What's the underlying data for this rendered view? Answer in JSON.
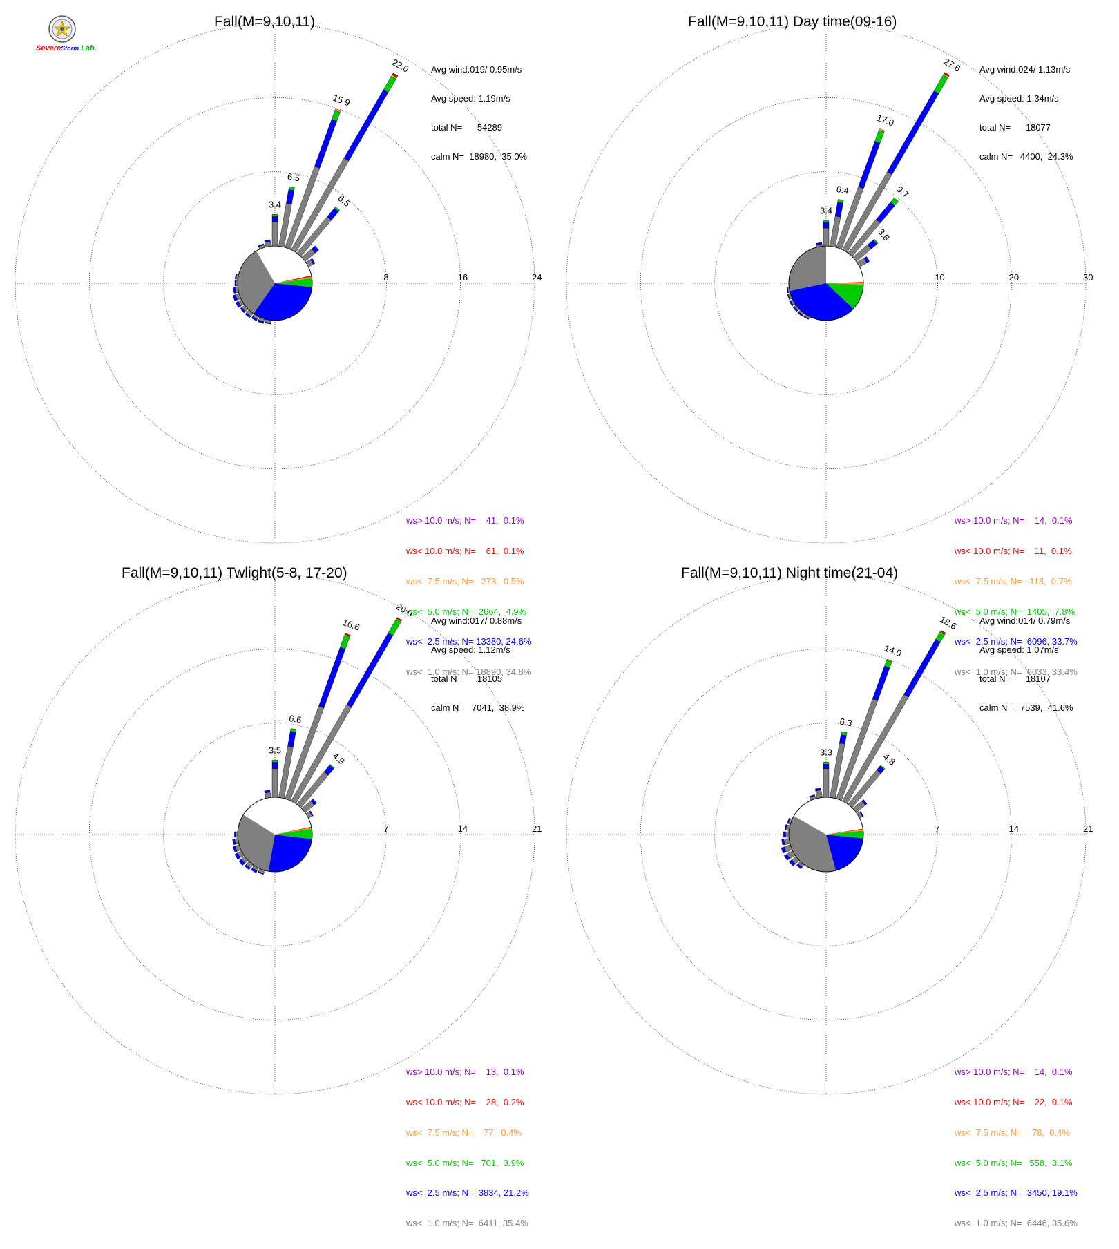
{
  "logo": {
    "text_severe": "Severe",
    "text_storm": "Storm",
    "text_lab": "Lab."
  },
  "colors": {
    "calm": "#808080",
    "ws_lt_1": "#808080",
    "ws_lt_2_5": "#0000ff",
    "ws_lt_5": "#00cc00",
    "ws_lt_7_5": "#ff9933",
    "ws_lt_10": "#ff0000",
    "ws_gt_10": "#9900cc"
  },
  "chart_data": [
    {
      "type": "windrose",
      "title": "Fall(M=9,10,11)",
      "stats": {
        "avg_wind": "Avg wind:019/ 0.95m/s",
        "avg_speed": "Avg speed: 1.19m/s",
        "total": "total N=      54289",
        "calm": "calm N=  18980,  35.0%"
      },
      "ring_labels": [
        "8",
        "16",
        "24"
      ],
      "rmax": 24,
      "calm_pie": [
        {
          "category": "ws<1.0",
          "from_deg": 215,
          "to_deg": 330
        },
        {
          "category": "ws<2.5",
          "from_deg": 96,
          "to_deg": 215
        },
        {
          "category": "ws<5.0",
          "from_deg": 82,
          "to_deg": 96
        },
        {
          "category": "ws<7.5",
          "from_deg": 80,
          "to_deg": 82
        },
        {
          "category": "ws<10.0",
          "from_deg": 78,
          "to_deg": 80
        }
      ],
      "bars": [
        {
          "dir": 0,
          "total": 3.4,
          "label": "3.4",
          "segments": [
            2.6,
            0.6,
            0.2
          ]
        },
        {
          "dir": 10,
          "total": 6.5,
          "label": "6.5",
          "segments": [
            4.7,
            1.5,
            0.3
          ]
        },
        {
          "dir": 20,
          "total": 15.9,
          "label": "15.9",
          "segments": [
            9.3,
            5.4,
            1.0,
            0.2
          ]
        },
        {
          "dir": 30,
          "total": 22.0,
          "label": "22.0",
          "segments": [
            11.4,
            8.5,
            1.7,
            0.2,
            0.2
          ]
        },
        {
          "dir": 40,
          "total": 6.5,
          "label": "6.5",
          "segments": [
            5.1,
            1.2,
            0.2
          ]
        },
        {
          "dir": 50,
          "total": 1.9,
          "label": "",
          "segments": [
            1.4,
            0.5
          ]
        },
        {
          "dir": 60,
          "total": 0.8,
          "label": "",
          "segments": [
            0.6,
            0.2
          ]
        },
        {
          "dir": 350,
          "total": 0.7,
          "label": "",
          "segments": [
            0.5,
            0.2
          ]
        },
        {
          "dir": 340,
          "total": 0.4,
          "label": "",
          "segments": [
            0.3,
            0.1
          ]
        },
        {
          "dir": 190,
          "total": 0.4,
          "label": "",
          "segments": [
            0.3,
            0.1
          ]
        },
        {
          "dir": 200,
          "total": 0.5,
          "label": "",
          "segments": [
            0.3,
            0.2
          ]
        },
        {
          "dir": 210,
          "total": 0.5,
          "label": "",
          "segments": [
            0.3,
            0.2
          ]
        },
        {
          "dir": 220,
          "total": 0.6,
          "label": "",
          "segments": [
            0.4,
            0.2
          ]
        },
        {
          "dir": 230,
          "total": 0.6,
          "label": "",
          "segments": [
            0.4,
            0.2
          ]
        },
        {
          "dir": 240,
          "total": 0.7,
          "label": "",
          "segments": [
            0.4,
            0.3
          ]
        },
        {
          "dir": 250,
          "total": 0.7,
          "label": "",
          "segments": [
            0.4,
            0.3
          ]
        },
        {
          "dir": 260,
          "total": 0.5,
          "label": "",
          "segments": [
            0.3,
            0.2
          ]
        },
        {
          "dir": 270,
          "total": 0.3,
          "label": "",
          "segments": [
            0.2,
            0.1
          ]
        },
        {
          "dir": 280,
          "total": 0.3,
          "label": "",
          "segments": [
            0.2,
            0.1
          ]
        }
      ],
      "legend": [
        {
          "text": "ws> 10.0 m/s; N=    41,  0.1%",
          "color": "#9900cc"
        },
        {
          "text": "ws< 10.0 m/s; N=    61,  0.1%",
          "color": "#ff0000"
        },
        {
          "text": "ws<  7.5 m/s; N=   273,  0.5%",
          "color": "#ff9933"
        },
        {
          "text": "ws<  5.0 m/s; N=  2664,  4.9%",
          "color": "#00cc00"
        },
        {
          "text": "ws<  2.5 m/s; N= 13380, 24.6%",
          "color": "#0000ff"
        },
        {
          "text": "ws<  1.0 m/s; N= 18890, 34.8%",
          "color": "#808080"
        }
      ]
    },
    {
      "type": "windrose",
      "title": "Fall(M=9,10,11) Day time(09-16)",
      "stats": {
        "avg_wind": "Avg wind:024/ 1.13m/s",
        "avg_speed": "Avg speed: 1.34m/s",
        "total": "total N=      18077",
        "calm": "calm N=   4400,  24.3%"
      },
      "ring_labels": [
        "10",
        "20",
        "30"
      ],
      "rmax": 30,
      "calm_pie": [
        {
          "category": "ws<1.0",
          "from_deg": 258,
          "to_deg": 360
        },
        {
          "category": "ws<2.5",
          "from_deg": 133,
          "to_deg": 258
        },
        {
          "category": "ws<5.0",
          "from_deg": 92,
          "to_deg": 133
        },
        {
          "category": "ws<7.5",
          "from_deg": 89,
          "to_deg": 92
        },
        {
          "category": "ws<10.0",
          "from_deg": 88,
          "to_deg": 89
        }
      ],
      "bars": [
        {
          "dir": 0,
          "total": 3.4,
          "label": "3.4",
          "segments": [
            2.4,
            0.8,
            0.2
          ]
        },
        {
          "dir": 10,
          "total": 6.4,
          "label": "6.4",
          "segments": [
            4.1,
            1.9,
            0.4
          ]
        },
        {
          "dir": 20,
          "total": 17.0,
          "label": "17.0",
          "segments": [
            8.7,
            6.5,
            1.6,
            0.2
          ]
        },
        {
          "dir": 30,
          "total": 27.6,
          "label": "27.6",
          "segments": [
            12.1,
            12.6,
            2.5,
            0.2,
            0.2
          ]
        },
        {
          "dir": 40,
          "total": 9.7,
          "label": "9.7",
          "segments": [
            5.9,
            3.0,
            0.8
          ]
        },
        {
          "dir": 50,
          "total": 3.8,
          "label": "3.8",
          "segments": [
            2.6,
            1.0,
            0.2
          ]
        },
        {
          "dir": 60,
          "total": 1.5,
          "label": "",
          "segments": [
            1.1,
            0.4
          ]
        },
        {
          "dir": 350,
          "total": 0.5,
          "label": "",
          "segments": [
            0.3,
            0.2
          ]
        },
        {
          "dir": 210,
          "total": 0.4,
          "label": "",
          "segments": [
            0.3,
            0.1
          ]
        },
        {
          "dir": 220,
          "total": 0.5,
          "label": "",
          "segments": [
            0.3,
            0.2
          ]
        },
        {
          "dir": 230,
          "total": 0.5,
          "label": "",
          "segments": [
            0.3,
            0.2
          ]
        },
        {
          "dir": 240,
          "total": 0.5,
          "label": "",
          "segments": [
            0.3,
            0.2
          ]
        },
        {
          "dir": 250,
          "total": 0.4,
          "label": "",
          "segments": [
            0.3,
            0.1
          ]
        },
        {
          "dir": 260,
          "total": 0.3,
          "label": "",
          "segments": [
            0.2,
            0.1
          ]
        }
      ],
      "legend": [
        {
          "text": "ws> 10.0 m/s; N=    14,  0.1%",
          "color": "#9900cc"
        },
        {
          "text": "ws< 10.0 m/s; N=    11,  0.1%",
          "color": "#ff0000"
        },
        {
          "text": "ws<  7.5 m/s; N=   118,  0.7%",
          "color": "#ff9933"
        },
        {
          "text": "ws<  5.0 m/s; N=  1405,  7.8%",
          "color": "#00cc00"
        },
        {
          "text": "ws<  2.5 m/s; N=  6096, 33.7%",
          "color": "#0000ff"
        },
        {
          "text": "ws<  1.0 m/s; N=  6033, 33.4%",
          "color": "#808080"
        }
      ]
    },
    {
      "type": "windrose",
      "title": "Fall(M=9,10,11) Twlight(5-8, 17-20)",
      "stats": {
        "avg_wind": "Avg wind:017/ 0.88m/s",
        "avg_speed": "Avg speed: 1.12m/s",
        "total": "total N=      18105",
        "calm": "calm N=   7041,  38.9%"
      },
      "ring_labels": [
        "7",
        "14",
        "21"
      ],
      "rmax": 21,
      "calm_pie": [
        {
          "category": "ws<1.0",
          "from_deg": 190,
          "to_deg": 302
        },
        {
          "category": "ws<2.5",
          "from_deg": 97,
          "to_deg": 190
        },
        {
          "category": "ws<5.0",
          "from_deg": 81,
          "to_deg": 97
        },
        {
          "category": "ws<7.5",
          "from_deg": 79,
          "to_deg": 81
        },
        {
          "category": "ws<10.0",
          "from_deg": 78,
          "to_deg": 79
        }
      ],
      "bars": [
        {
          "dir": 0,
          "total": 3.5,
          "label": "3.5",
          "segments": [
            2.7,
            0.6,
            0.2
          ]
        },
        {
          "dir": 10,
          "total": 6.6,
          "label": "6.6",
          "segments": [
            4.9,
            1.4,
            0.3
          ]
        },
        {
          "dir": 20,
          "total": 16.6,
          "label": "16.6",
          "segments": [
            9.3,
            5.9,
            1.2,
            0.1,
            0.1
          ]
        },
        {
          "dir": 30,
          "total": 20.0,
          "label": "20.0",
          "segments": [
            10.5,
            7.8,
            1.5,
            0.1,
            0.1
          ]
        },
        {
          "dir": 40,
          "total": 4.9,
          "label": "4.9",
          "segments": [
            4.0,
            0.8,
            0.1
          ]
        },
        {
          "dir": 50,
          "total": 1.4,
          "label": "",
          "segments": [
            1.1,
            0.3
          ]
        },
        {
          "dir": 60,
          "total": 0.5,
          "label": "",
          "segments": [
            0.4,
            0.1
          ]
        },
        {
          "dir": 350,
          "total": 0.7,
          "label": "",
          "segments": [
            0.5,
            0.2
          ]
        },
        {
          "dir": 200,
          "total": 0.4,
          "label": "",
          "segments": [
            0.3,
            0.1
          ]
        },
        {
          "dir": 210,
          "total": 0.5,
          "label": "",
          "segments": [
            0.3,
            0.2
          ]
        },
        {
          "dir": 220,
          "total": 0.6,
          "label": "",
          "segments": [
            0.4,
            0.2
          ]
        },
        {
          "dir": 230,
          "total": 0.7,
          "label": "",
          "segments": [
            0.4,
            0.3
          ]
        },
        {
          "dir": 240,
          "total": 0.7,
          "label": "",
          "segments": [
            0.4,
            0.3
          ]
        },
        {
          "dir": 250,
          "total": 0.6,
          "label": "",
          "segments": [
            0.4,
            0.2
          ]
        },
        {
          "dir": 260,
          "total": 0.5,
          "label": "",
          "segments": [
            0.3,
            0.2
          ]
        },
        {
          "dir": 270,
          "total": 0.3,
          "label": "",
          "segments": [
            0.2,
            0.1
          ]
        }
      ],
      "legend": [
        {
          "text": "ws> 10.0 m/s; N=    13,  0.1%",
          "color": "#9900cc"
        },
        {
          "text": "ws< 10.0 m/s; N=    28,  0.2%",
          "color": "#ff0000"
        },
        {
          "text": "ws<  7.5 m/s; N=    77,  0.4%",
          "color": "#ff9933"
        },
        {
          "text": "ws<  5.0 m/s; N=   701,  3.9%",
          "color": "#00cc00"
        },
        {
          "text": "ws<  2.5 m/s; N=  3834, 21.2%",
          "color": "#0000ff"
        },
        {
          "text": "ws<  1.0 m/s; N=  6411, 35.4%",
          "color": "#808080"
        }
      ]
    },
    {
      "type": "windrose",
      "title": "Fall(M=9,10,11) Night time(21-04)",
      "stats": {
        "avg_wind": "Avg wind:014/ 0.79m/s",
        "avg_speed": "Avg speed: 1.07m/s",
        "total": "total N=      18107",
        "calm": "calm N=   7539,  41.6%"
      },
      "ring_labels": [
        "7",
        "14",
        "21"
      ],
      "rmax": 21,
      "calm_pie": [
        {
          "category": "ws<1.0",
          "from_deg": 165,
          "to_deg": 300
        },
        {
          "category": "ws<2.5",
          "from_deg": 96,
          "to_deg": 165
        },
        {
          "category": "ws<5.0",
          "from_deg": 84,
          "to_deg": 96
        },
        {
          "category": "ws<7.5",
          "from_deg": 82,
          "to_deg": 84
        },
        {
          "category": "ws<10.0",
          "from_deg": 81,
          "to_deg": 82
        }
      ],
      "bars": [
        {
          "dir": 0,
          "total": 3.3,
          "label": "3.3",
          "segments": [
            2.7,
            0.4,
            0.2
          ]
        },
        {
          "dir": 10,
          "total": 6.3,
          "label": "6.3",
          "segments": [
            5.2,
            0.8,
            0.3
          ]
        },
        {
          "dir": 20,
          "total": 14.0,
          "label": "14.0",
          "segments": [
            10.0,
            3.3,
            0.6,
            0.1
          ]
        },
        {
          "dir": 30,
          "total": 18.6,
          "label": "18.6",
          "segments": [
            11.6,
            6.0,
            0.8,
            0.1,
            0.1
          ]
        },
        {
          "dir": 40,
          "total": 4.8,
          "label": "4.8",
          "segments": [
            4.2,
            0.5,
            0.1
          ]
        },
        {
          "dir": 50,
          "total": 1.3,
          "label": "",
          "segments": [
            1.1,
            0.2
          ]
        },
        {
          "dir": 60,
          "total": 0.4,
          "label": "",
          "segments": [
            0.3,
            0.1
          ]
        },
        {
          "dir": 350,
          "total": 0.9,
          "label": "",
          "segments": [
            0.7,
            0.2
          ]
        },
        {
          "dir": 340,
          "total": 0.4,
          "label": "",
          "segments": [
            0.3,
            0.1
          ]
        },
        {
          "dir": 220,
          "total": 0.5,
          "label": "",
          "segments": [
            0.3,
            0.2
          ]
        },
        {
          "dir": 230,
          "total": 0.8,
          "label": "",
          "segments": [
            0.5,
            0.3
          ]
        },
        {
          "dir": 240,
          "total": 0.9,
          "label": "",
          "segments": [
            0.6,
            0.3
          ]
        },
        {
          "dir": 250,
          "total": 0.9,
          "label": "",
          "segments": [
            0.6,
            0.3
          ]
        },
        {
          "dir": 260,
          "total": 0.7,
          "label": "",
          "segments": [
            0.5,
            0.2
          ]
        },
        {
          "dir": 270,
          "total": 0.5,
          "label": "",
          "segments": [
            0.3,
            0.2
          ]
        },
        {
          "dir": 280,
          "total": 0.4,
          "label": "",
          "segments": [
            0.3,
            0.1
          ]
        },
        {
          "dir": 290,
          "total": 0.3,
          "label": "",
          "segments": [
            0.2,
            0.1
          ]
        }
      ],
      "legend": [
        {
          "text": "ws> 10.0 m/s; N=    14,  0.1%",
          "color": "#9900cc"
        },
        {
          "text": "ws< 10.0 m/s; N=    22,  0.1%",
          "color": "#ff0000"
        },
        {
          "text": "ws<  7.5 m/s; N=    78,  0.4%",
          "color": "#ff9933"
        },
        {
          "text": "ws<  5.0 m/s; N=   558,  3.1%",
          "color": "#00cc00"
        },
        {
          "text": "ws<  2.5 m/s; N=  3450, 19.1%",
          "color": "#0000ff"
        },
        {
          "text": "ws<  1.0 m/s; N=  6446, 35.6%",
          "color": "#808080"
        }
      ]
    }
  ]
}
